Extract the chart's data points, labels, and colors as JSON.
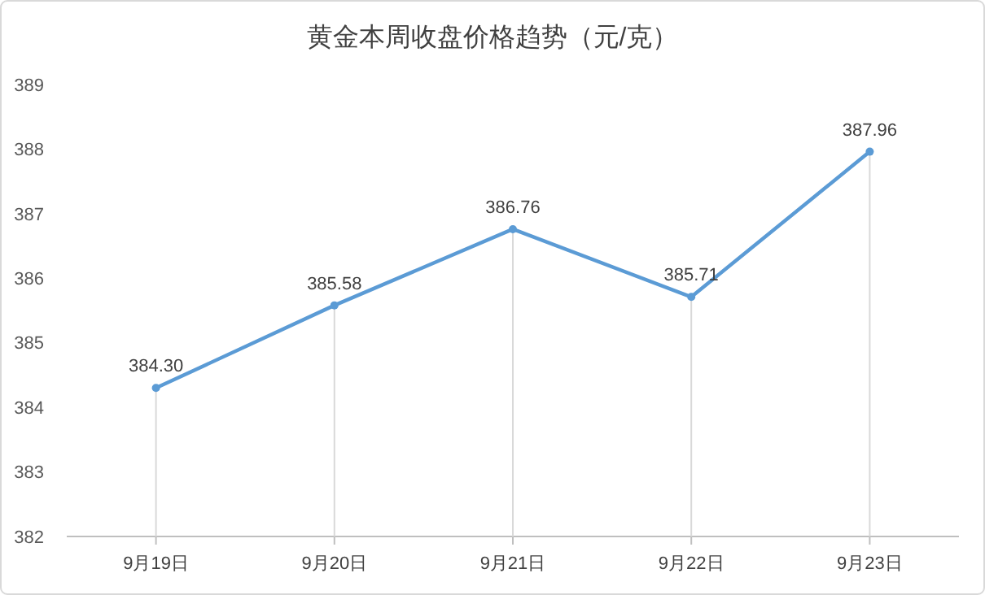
{
  "chart_data": {
    "type": "line",
    "title": "黄金本周收盘价格趋势（元/克）",
    "categories": [
      "9月19日",
      "9月20日",
      "9月21日",
      "9月22日",
      "9月23日"
    ],
    "series": [
      {
        "color": "#5b9bd5",
        "values": [
          384.3,
          385.58,
          386.76,
          385.71,
          387.96
        ],
        "value_labels": [
          "384.30",
          "385.58",
          "386.76",
          "385.71",
          "387.96"
        ]
      }
    ],
    "ylim": [
      382,
      389
    ],
    "yticks": [
      382,
      383,
      384,
      385,
      386,
      387,
      388,
      389
    ],
    "marker": "circle",
    "grid": "x"
  }
}
